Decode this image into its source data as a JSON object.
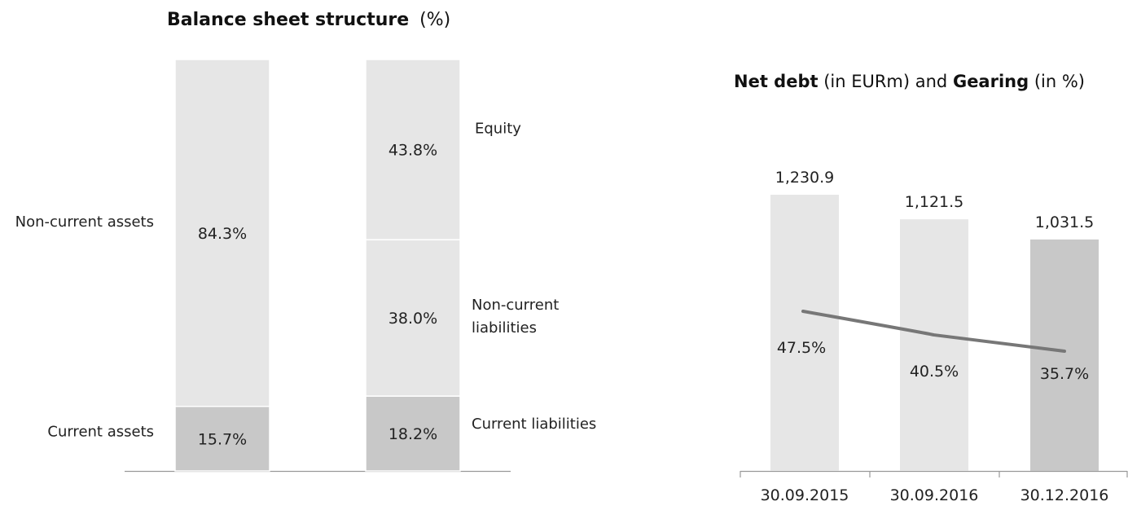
{
  "chart_data": [
    {
      "type": "bar",
      "stacked": true,
      "title": "Balance sheet structure",
      "title_unit": "(%)",
      "ylim": [
        0,
        100
      ],
      "grid": false,
      "columns": [
        {
          "segments": [
            {
              "label": "Current assets",
              "value": 15.7,
              "value_label": "15.7%",
              "color": "#c8c8c8"
            },
            {
              "label": "Non-current assets",
              "value": 84.3,
              "value_label": "84.3%",
              "color": "#e6e6e6"
            }
          ]
        },
        {
          "segments": [
            {
              "label": "Current liabilities",
              "value": 18.2,
              "value_label": "18.2%",
              "color": "#c8c8c8"
            },
            {
              "label": "Non-current liabilities",
              "value": 38.0,
              "value_label": "38.0%",
              "color": "#e6e6e6"
            },
            {
              "label": "Equity",
              "value": 43.8,
              "value_label": "43.8%",
              "color": "#e6e6e6"
            }
          ]
        }
      ]
    },
    {
      "type": "bar",
      "title_part1": "Net debt",
      "title_part2": " (in EURm) and ",
      "title_part3": "Gearing",
      "title_part4": " (in %)",
      "categories": [
        "30.09.2015",
        "30.09.2016",
        "30.12.2016"
      ],
      "grid": false,
      "series": [
        {
          "values": [
            1230.9,
            1121.5,
            1031.5
          ],
          "value_labels": [
            "1,230.9",
            "1,121.5",
            "1,031.5"
          ],
          "colors": [
            "#e6e6e6",
            "#e6e6e6",
            "#c8c8c8"
          ],
          "ylim": [
            0,
            1400
          ]
        },
        {
          "type": "line",
          "values": [
            47.5,
            40.5,
            35.7
          ],
          "value_labels": [
            "47.5%",
            "40.5%",
            "35.7%"
          ],
          "color": "#777777"
        }
      ]
    }
  ]
}
